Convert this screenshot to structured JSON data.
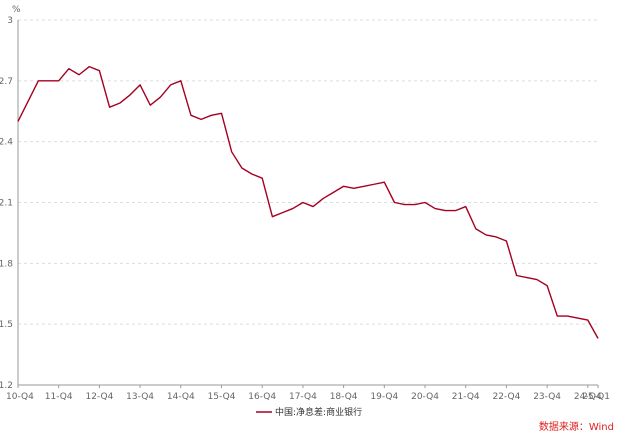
{
  "chart_data": {
    "type": "line",
    "unit": "%",
    "ylim": [
      1.2,
      3.0
    ],
    "y_ticks": [
      "1.2",
      "1.5",
      "1.8",
      "2.1",
      "2.4",
      "2.7",
      "3"
    ],
    "y_tick_values": [
      1.2,
      1.5,
      1.8,
      2.1,
      2.4,
      2.7,
      3.0
    ],
    "x_range": [
      2010.75,
      2025.0
    ],
    "x_tick_labels": [
      "10-Q4",
      "11-Q4",
      "12-Q4",
      "13-Q4",
      "14-Q4",
      "15-Q4",
      "16-Q4",
      "17-Q4",
      "18-Q4",
      "19-Q4",
      "20-Q4",
      "21-Q4",
      "22-Q4",
      "23-Q4",
      "24-Q4",
      "25-Q1"
    ],
    "x_tick_values": [
      2010.75,
      2011.75,
      2012.75,
      2013.75,
      2014.75,
      2015.75,
      2016.75,
      2017.75,
      2018.75,
      2019.75,
      2020.75,
      2021.75,
      2022.75,
      2023.75,
      2024.75,
      2025.0
    ],
    "grid": "horizontal dashed",
    "legend_position": "bottom-center",
    "series": [
      {
        "name": "中国:净息差:商业银行",
        "color": "#a50021",
        "x": [
          2010.75,
          2011.25,
          2011.5,
          2011.75,
          2012.0,
          2012.25,
          2012.5,
          2012.75,
          2013.0,
          2013.25,
          2013.5,
          2013.75,
          2014.0,
          2014.25,
          2014.5,
          2014.75,
          2015.0,
          2015.25,
          2015.5,
          2015.75,
          2016.0,
          2016.25,
          2016.5,
          2016.75,
          2017.0,
          2017.25,
          2017.5,
          2017.75,
          2018.0,
          2018.25,
          2018.5,
          2018.75,
          2019.0,
          2019.25,
          2019.5,
          2019.75,
          2020.0,
          2020.25,
          2020.5,
          2020.75,
          2021.0,
          2021.25,
          2021.5,
          2021.75,
          2022.0,
          2022.25,
          2022.5,
          2022.75,
          2023.0,
          2023.25,
          2023.5,
          2023.75,
          2024.0,
          2024.25,
          2024.5,
          2024.75,
          2025.0
        ],
        "values": [
          2.5,
          2.7,
          2.7,
          2.7,
          2.76,
          2.73,
          2.77,
          2.75,
          2.57,
          2.59,
          2.63,
          2.68,
          2.58,
          2.62,
          2.68,
          2.7,
          2.53,
          2.51,
          2.53,
          2.54,
          2.35,
          2.27,
          2.24,
          2.22,
          2.03,
          2.05,
          2.07,
          2.1,
          2.08,
          2.12,
          2.15,
          2.18,
          2.17,
          2.18,
          2.19,
          2.2,
          2.1,
          2.09,
          2.09,
          2.1,
          2.07,
          2.06,
          2.06,
          2.08,
          1.97,
          1.94,
          1.93,
          1.91,
          1.74,
          1.73,
          1.72,
          1.69,
          1.54,
          1.54,
          1.53,
          1.52,
          1.43
        ]
      }
    ]
  },
  "source_note": "数据来源：Wind"
}
